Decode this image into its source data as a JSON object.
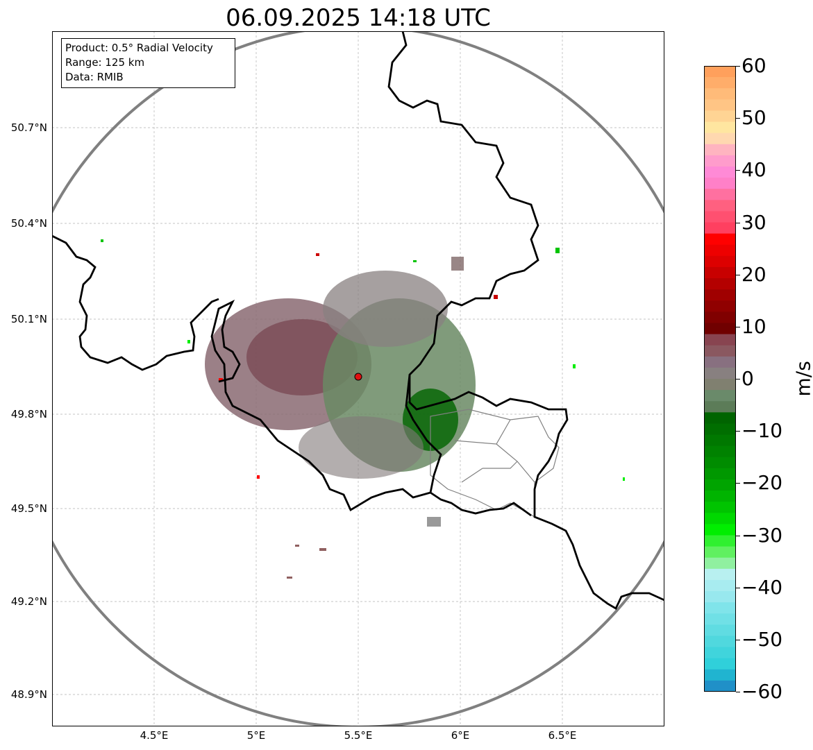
{
  "title": "06.09.2025 14:18 UTC",
  "info_box": {
    "lines": [
      "Product: 0.5° Radial Velocity",
      "Range: 125 km",
      "Data: RMIB"
    ]
  },
  "axes": {
    "lat_ticks": [
      "50.7°N",
      "50.4°N",
      "50.1°N",
      "49.8°N",
      "49.5°N",
      "49.2°N",
      "48.9°N"
    ],
    "lon_ticks": [
      "4.5°E",
      "5°E",
      "5.5°E",
      "6°E",
      "6.5°E"
    ]
  },
  "map": {
    "radar_site": "radar-site",
    "range_ring_color": "#808080",
    "border_color": "#000000",
    "subdivision_color": "#808080",
    "gridline_color": "#b0b0b0"
  },
  "colorbar": {
    "unit": "m/s",
    "min": -60,
    "max": 60,
    "tick_labels": [
      "60",
      "50",
      "40",
      "30",
      "20",
      "10",
      "0",
      "−10",
      "−20",
      "−30",
      "−40",
      "−50",
      "−60"
    ],
    "colors_top_to_bottom": [
      "#ffa05c",
      "#ffad6a",
      "#ffbb79",
      "#ffc585",
      "#ffd494",
      "#ffe6a0",
      "#ffd8b0",
      "#ffb4c0",
      "#ff9ccc",
      "#ff8ad6",
      "#ff80c8",
      "#ff70a0",
      "#ff6080",
      "#ff5070",
      "#ff4060",
      "#ff0000",
      "#ee0000",
      "#dd0000",
      "#c80000",
      "#b40000",
      "#a00000",
      "#900000",
      "#800000",
      "#700000",
      "#884450",
      "#8a5860",
      "#887080",
      "#888080",
      "#808070",
      "#6a8a6a",
      "#5c7c58",
      "#006400",
      "#006e00",
      "#007800",
      "#008200",
      "#008c00",
      "#009800",
      "#00a400",
      "#00b400",
      "#00c400",
      "#00d800",
      "#00ee00",
      "#30f030",
      "#60f060",
      "#90f0a0",
      "#b8f0f0",
      "#a8ecf0",
      "#98e8ee",
      "#80e4ea",
      "#70e0e6",
      "#60dce2",
      "#50d8de",
      "#40d4dc",
      "#30d0da",
      "#20b4d0",
      "#2090c8"
    ]
  }
}
